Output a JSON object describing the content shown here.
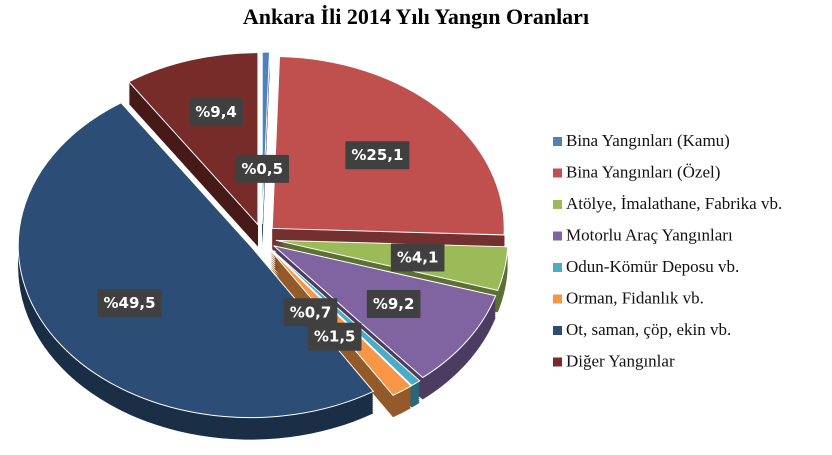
{
  "chart_data": {
    "type": "pie",
    "title": "Ankara İli 2014 Yılı Yangın Oranları",
    "categories": [
      "Bina Yangınları (Kamu)",
      "Bina Yangınları (Özel)",
      "Atölye, İmalathane, Fabrika vb.",
      "Motorlu Araç Yangınları",
      "Odun-Kömür Deposu vb.",
      "Orman, Fidanlık vb.",
      "Ot, saman, çöp, ekin vb.",
      "Diğer Yangınlar"
    ],
    "values": [
      0.5,
      25.1,
      4.1,
      9.2,
      0.7,
      1.5,
      49.5,
      9.4
    ],
    "value_labels": [
      "%0,5",
      "%25,1",
      "%4,1",
      "%9,2",
      "%0,7",
      "%1,5",
      "%49,5",
      "%9,4"
    ],
    "colors": [
      "#4f81bd",
      "#c0504d",
      "#9bbb59",
      "#8064a2",
      "#4bacc6",
      "#f79646",
      "#2c4d75",
      "#772c2a"
    ],
    "legend": "right"
  }
}
